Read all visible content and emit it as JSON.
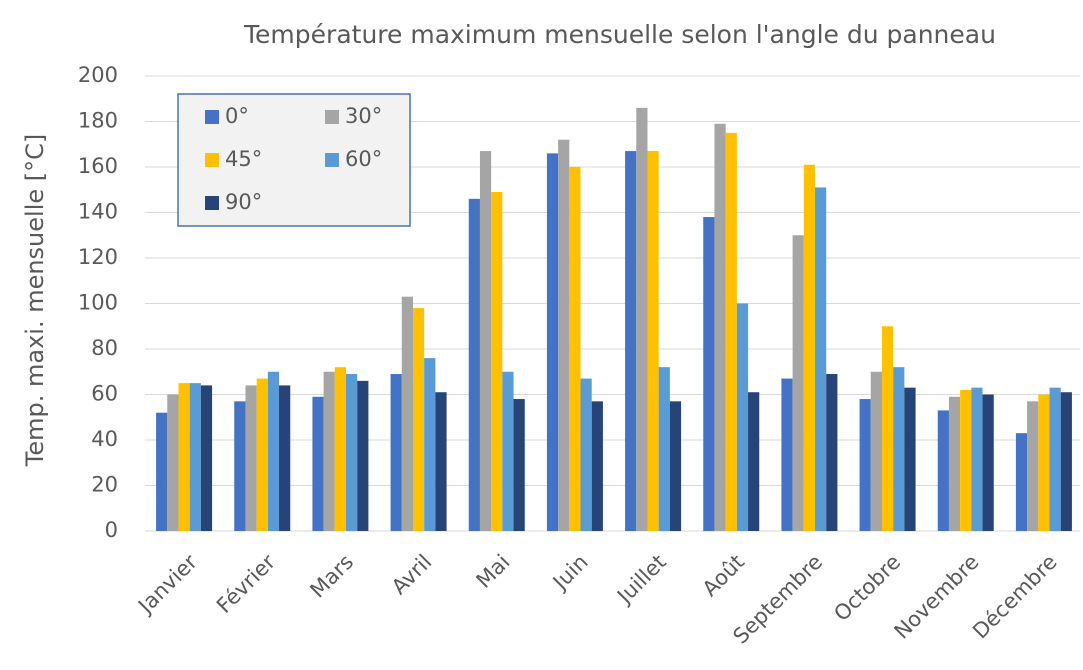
{
  "chart_data": {
    "type": "bar",
    "title": "Température maximum mensuelle selon l'angle du panneau",
    "y_label": "Temp. maxi. mensuelle [°C]",
    "categories": [
      "Janvier",
      "Février",
      "Mars",
      "Avril",
      "Mai",
      "Juin",
      "Juillet",
      "Août",
      "Septembre",
      "Octobre",
      "Novembre",
      "Décembre"
    ],
    "series": [
      {
        "name": "0°",
        "color": "#4472c4",
        "values": [
          52,
          57,
          59,
          69,
          146,
          166,
          167,
          138,
          67,
          58,
          53,
          43
        ]
      },
      {
        "name": "30°",
        "color": "#a5a5a5",
        "values": [
          60,
          64,
          70,
          103,
          167,
          172,
          186,
          179,
          130,
          70,
          59,
          57
        ]
      },
      {
        "name": "45°",
        "color": "#ffc000",
        "values": [
          65,
          67,
          72,
          98,
          149,
          160,
          167,
          175,
          161,
          90,
          62,
          60
        ]
      },
      {
        "name": "60°",
        "color": "#5b9bd5",
        "values": [
          65,
          70,
          69,
          76,
          70,
          67,
          72,
          100,
          151,
          72,
          63,
          63
        ]
      },
      {
        "name": "90°",
        "color": "#264478",
        "values": [
          64,
          64,
          66,
          61,
          58,
          57,
          57,
          61,
          69,
          63,
          60,
          61
        ]
      }
    ],
    "ylim": [
      0,
      200
    ],
    "yticks": [
      0,
      20,
      40,
      60,
      80,
      100,
      120,
      140,
      160,
      180,
      200
    ],
    "grid": true,
    "legend": "top-left"
  }
}
